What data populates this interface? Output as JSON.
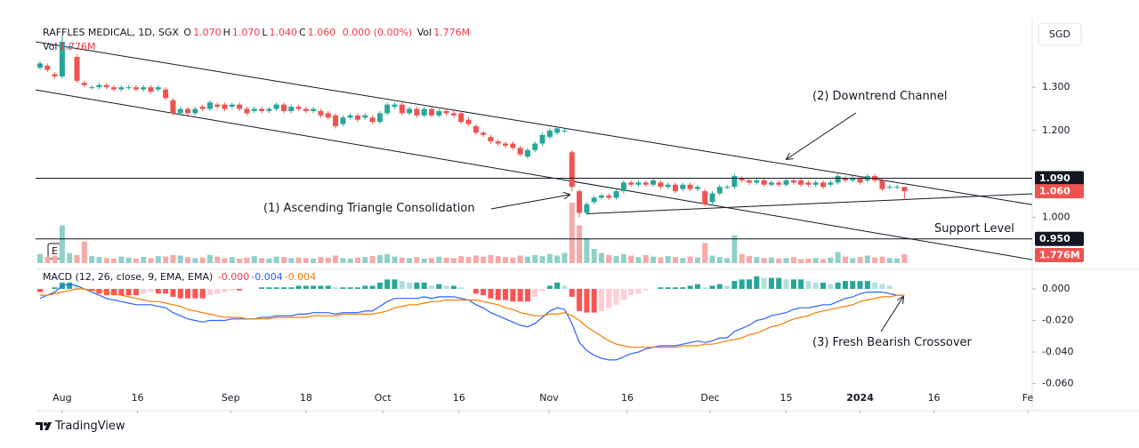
{
  "chart_data": [
    {
      "type": "candlestick",
      "symbol": "RAFFLES MEDICAL, 1D, SGX",
      "legend": [
        {
          "key": "O",
          "value": "1.070"
        },
        {
          "key": "H",
          "value": "1.070"
        },
        {
          "key": "L",
          "value": "1.040"
        },
        {
          "key": "C",
          "value": "1.060"
        }
      ],
      "change": "0.000 (0.00%)",
      "volume_legend": {
        "key": "Vol",
        "value": "1.776M"
      },
      "currency": "SGD",
      "open": [
        1.345,
        1.35,
        1.33,
        1.325,
        1.39,
        1.37,
        1.31,
        1.3,
        1.3,
        1.305,
        1.3,
        1.295,
        1.3,
        1.3,
        1.295,
        1.3,
        1.295,
        1.295,
        1.27,
        1.24,
        1.25,
        1.24,
        1.255,
        1.25,
        1.26,
        1.26,
        1.255,
        1.26,
        1.25,
        1.245,
        1.25,
        1.245,
        1.25,
        1.26,
        1.245,
        1.255,
        1.25,
        1.245,
        1.245,
        1.24,
        1.235,
        1.215,
        1.23,
        1.235,
        1.23,
        1.23,
        1.22,
        1.24,
        1.255,
        1.26,
        1.24,
        1.25,
        1.235,
        1.25,
        1.235,
        1.245,
        1.24,
        1.24,
        1.225,
        1.21,
        1.195,
        1.185,
        1.175,
        1.17,
        1.17,
        1.16,
        1.14,
        1.155,
        1.17,
        1.185,
        1.195,
        1.2,
        1.15,
        1.06,
        1.01,
        1.035,
        1.045,
        1.05,
        1.045,
        1.06,
        1.08,
        1.075,
        1.08,
        1.075,
        1.08,
        1.07,
        1.075,
        1.065,
        1.075,
        1.065,
        1.06,
        1.035,
        1.055,
        1.07,
        1.07,
        1.09,
        1.085,
        1.08,
        1.085,
        1.075,
        1.08,
        1.075,
        1.085,
        1.085,
        1.08,
        1.075,
        1.08,
        1.075,
        1.08,
        1.09,
        1.085,
        1.09,
        1.085,
        1.095,
        1.085,
        1.07,
        1.07,
        1.07
      ],
      "high": [
        1.36,
        1.355,
        1.335,
        1.42,
        1.4,
        1.375,
        1.315,
        1.305,
        1.31,
        1.31,
        1.305,
        1.305,
        1.305,
        1.305,
        1.305,
        1.305,
        1.305,
        1.3,
        1.275,
        1.255,
        1.255,
        1.255,
        1.26,
        1.27,
        1.265,
        1.265,
        1.265,
        1.265,
        1.255,
        1.255,
        1.255,
        1.255,
        1.265,
        1.265,
        1.26,
        1.26,
        1.255,
        1.255,
        1.25,
        1.245,
        1.24,
        1.235,
        1.24,
        1.24,
        1.24,
        1.235,
        1.245,
        1.265,
        1.265,
        1.265,
        1.255,
        1.255,
        1.255,
        1.255,
        1.25,
        1.25,
        1.245,
        1.245,
        1.23,
        1.215,
        1.2,
        1.19,
        1.18,
        1.175,
        1.175,
        1.165,
        1.16,
        1.175,
        1.195,
        1.205,
        1.21,
        1.205,
        1.155,
        1.065,
        1.035,
        1.05,
        1.055,
        1.055,
        1.065,
        1.085,
        1.085,
        1.085,
        1.085,
        1.09,
        1.085,
        1.08,
        1.08,
        1.08,
        1.08,
        1.075,
        1.065,
        1.06,
        1.075,
        1.075,
        1.1,
        1.095,
        1.09,
        1.09,
        1.09,
        1.085,
        1.085,
        1.09,
        1.09,
        1.09,
        1.085,
        1.085,
        1.085,
        1.085,
        1.1,
        1.095,
        1.095,
        1.095,
        1.1,
        1.1,
        1.09,
        1.075,
        1.075,
        1.07
      ],
      "low": [
        1.34,
        1.335,
        1.32,
        1.32,
        1.385,
        1.31,
        1.3,
        1.295,
        1.295,
        1.295,
        1.29,
        1.29,
        1.295,
        1.29,
        1.29,
        1.285,
        1.29,
        1.27,
        1.235,
        1.235,
        1.235,
        1.235,
        1.245,
        1.245,
        1.25,
        1.245,
        1.25,
        1.245,
        1.235,
        1.24,
        1.24,
        1.24,
        1.245,
        1.24,
        1.24,
        1.245,
        1.24,
        1.24,
        1.23,
        1.225,
        1.205,
        1.21,
        1.225,
        1.22,
        1.225,
        1.215,
        1.215,
        1.235,
        1.25,
        1.235,
        1.235,
        1.23,
        1.23,
        1.23,
        1.23,
        1.235,
        1.23,
        1.215,
        1.21,
        1.19,
        1.185,
        1.17,
        1.165,
        1.16,
        1.155,
        1.14,
        1.135,
        1.15,
        1.165,
        1.18,
        1.19,
        1.195,
        1.06,
        1.0,
        1.005,
        1.03,
        1.04,
        1.04,
        1.04,
        1.055,
        1.07,
        1.07,
        1.07,
        1.07,
        1.065,
        1.065,
        1.055,
        1.06,
        1.06,
        1.06,
        1.025,
        1.03,
        1.05,
        1.065,
        1.065,
        1.08,
        1.075,
        1.075,
        1.07,
        1.07,
        1.07,
        1.07,
        1.075,
        1.07,
        1.07,
        1.07,
        1.065,
        1.07,
        1.075,
        1.08,
        1.08,
        1.075,
        1.08,
        1.08,
        1.06,
        1.065,
        1.065,
        1.04
      ],
      "close": [
        1.355,
        1.34,
        1.325,
        1.405,
        1.395,
        1.315,
        1.305,
        1.3,
        1.305,
        1.3,
        1.295,
        1.3,
        1.3,
        1.295,
        1.3,
        1.29,
        1.3,
        1.275,
        1.24,
        1.25,
        1.24,
        1.25,
        1.25,
        1.265,
        1.255,
        1.25,
        1.26,
        1.25,
        1.24,
        1.25,
        1.245,
        1.25,
        1.26,
        1.245,
        1.255,
        1.25,
        1.245,
        1.25,
        1.235,
        1.23,
        1.21,
        1.23,
        1.235,
        1.225,
        1.235,
        1.22,
        1.24,
        1.26,
        1.26,
        1.24,
        1.25,
        1.235,
        1.25,
        1.235,
        1.245,
        1.24,
        1.235,
        1.22,
        1.215,
        1.195,
        1.19,
        1.175,
        1.17,
        1.165,
        1.16,
        1.145,
        1.155,
        1.17,
        1.19,
        1.2,
        1.205,
        1.2,
        1.07,
        1.01,
        1.03,
        1.045,
        1.05,
        1.045,
        1.06,
        1.08,
        1.075,
        1.08,
        1.075,
        1.085,
        1.07,
        1.075,
        1.06,
        1.075,
        1.065,
        1.07,
        1.03,
        1.055,
        1.07,
        1.07,
        1.095,
        1.085,
        1.08,
        1.085,
        1.075,
        1.08,
        1.075,
        1.085,
        1.08,
        1.075,
        1.075,
        1.08,
        1.07,
        1.08,
        1.095,
        1.085,
        1.09,
        1.08,
        1.095,
        1.085,
        1.065,
        1.07,
        1.07,
        1.06
      ],
      "volume": [
        1.8,
        1.2,
        1.5,
        7.5,
        2.0,
        1.6,
        4.3,
        1.4,
        1.2,
        1.0,
        0.9,
        1.3,
        1.1,
        0.9,
        1.2,
        1.0,
        1.4,
        1.3,
        1.6,
        1.5,
        1.2,
        1.0,
        1.1,
        1.6,
        1.3,
        1.0,
        1.2,
        0.9,
        1.1,
        1.4,
        1.0,
        0.9,
        1.3,
        1.2,
        1.0,
        1.1,
        1.0,
        0.9,
        1.2,
        1.1,
        1.5,
        1.0,
        0.9,
        1.1,
        1.2,
        1.4,
        1.6,
        1.8,
        1.3,
        1.1,
        1.0,
        1.2,
        0.9,
        1.0,
        1.3,
        1.1,
        1.0,
        1.4,
        1.2,
        1.5,
        1.3,
        1.6,
        1.4,
        1.2,
        1.1,
        1.5,
        1.3,
        1.6,
        1.4,
        1.8,
        1.5,
        2.0,
        12.0,
        7.5,
        5.0,
        2.8,
        2.0,
        1.6,
        1.4,
        1.8,
        1.5,
        1.2,
        1.6,
        1.3,
        1.1,
        1.4,
        1.2,
        1.0,
        1.3,
        1.1,
        4.0,
        1.5,
        1.2,
        1.0,
        5.5,
        1.8,
        1.4,
        1.2,
        1.0,
        1.1,
        0.9,
        1.0,
        1.2,
        0.8,
        0.9,
        1.0,
        0.8,
        1.1,
        2.2,
        1.3,
        1.0,
        1.2,
        1.5,
        1.1,
        1.3,
        1.0,
        0.9,
        1.776
      ],
      "last_close_label": "1.060",
      "last_volume_label": "1.776M",
      "colors": {
        "up": "#26a69a",
        "down": "#ef5350",
        "volume_up": "#8fd0c9",
        "volume_down": "#f7a9a7"
      },
      "xlim": [
        -0.6,
        134.3
      ],
      "ylim": [
        0.894,
        1.444
      ],
      "yticks": [
        {
          "value": 1.3,
          "label": "1.300"
        },
        {
          "value": 1.2,
          "label": "1.200"
        },
        {
          "value": 1.0,
          "label": "1.000"
        }
      ],
      "hlines": [
        {
          "value": 1.09,
          "label": "1.090"
        },
        {
          "value": 0.95,
          "label": "0.950"
        }
      ],
      "trendlines": [
        {
          "points": [
            [
              -0.6,
              1.405
            ],
            [
              134.3,
              1.029
            ]
          ]
        },
        {
          "points": [
            [
              -0.6,
              1.294
            ],
            [
              134.3,
              0.902
            ]
          ]
        },
        {
          "points": [
            [
              74,
              1.008
            ],
            [
              134.3,
              1.054
            ]
          ]
        }
      ],
      "annotations": [
        "(1) Ascending Triangle Consolidation",
        "(2) Downtrend Channel",
        "Support Level"
      ],
      "earnings_marker": "E"
    },
    {
      "type": "macd",
      "title": "MACD (12, 26, close, 9, EMA, EMA)",
      "series": [
        {
          "color": "#f23645",
          "legend": "-0.000",
          "values": [
            -0.002,
            0.0,
            0.001,
            0.004,
            0.004,
            0.002,
            0.0,
            -0.001,
            -0.003,
            -0.004,
            -0.004,
            -0.004,
            -0.004,
            -0.004,
            -0.003,
            -0.002,
            -0.003,
            -0.003,
            -0.005,
            -0.006,
            -0.006,
            -0.006,
            -0.006,
            -0.004,
            -0.003,
            -0.002,
            -0.001,
            -0.001,
            0.0,
            0.0,
            0.001,
            0.001,
            0.001,
            0.001,
            0.001,
            0.002,
            0.002,
            0.002,
            0.002,
            0.002,
            0.001,
            0.001,
            0.001,
            0.001,
            0.002,
            0.002,
            0.004,
            0.006,
            0.006,
            0.005,
            0.004,
            0.004,
            0.004,
            0.002,
            0.003,
            0.002,
            0.002,
            0.001,
            0.0,
            -0.003,
            -0.004,
            -0.006,
            -0.007,
            -0.007,
            -0.008,
            -0.008,
            -0.008,
            -0.005,
            -0.001,
            0.002,
            0.004,
            0.002,
            -0.005,
            -0.014,
            -0.015,
            -0.015,
            -0.014,
            -0.012,
            -0.01,
            -0.007,
            -0.004,
            -0.003,
            -0.001,
            0.0,
            0.001,
            0.001,
            0.001,
            0.001,
            0.002,
            0.003,
            0.001,
            0.002,
            0.003,
            0.002,
            0.005,
            0.006,
            0.006,
            0.008,
            0.007,
            0.007,
            0.007,
            0.006,
            0.006,
            0.006,
            0.005,
            0.004,
            0.004,
            0.003,
            0.004,
            0.005,
            0.005,
            0.005,
            0.005,
            0.004,
            0.003,
            0.002,
            0.0,
            0.0
          ]
        },
        {
          "color": "#2962ff",
          "legend": "-0.004",
          "values": [
            -0.006,
            -0.004,
            -0.002,
            0.002,
            0.003,
            0.002,
            0.0,
            -0.002,
            -0.004,
            -0.006,
            -0.007,
            -0.008,
            -0.009,
            -0.01,
            -0.01,
            -0.01,
            -0.011,
            -0.012,
            -0.015,
            -0.017,
            -0.019,
            -0.02,
            -0.021,
            -0.02,
            -0.02,
            -0.02,
            -0.019,
            -0.019,
            -0.019,
            -0.019,
            -0.018,
            -0.018,
            -0.017,
            -0.017,
            -0.017,
            -0.016,
            -0.016,
            -0.015,
            -0.015,
            -0.015,
            -0.016,
            -0.015,
            -0.015,
            -0.015,
            -0.014,
            -0.014,
            -0.011,
            -0.008,
            -0.006,
            -0.006,
            -0.006,
            -0.006,
            -0.005,
            -0.006,
            -0.005,
            -0.005,
            -0.005,
            -0.006,
            -0.007,
            -0.01,
            -0.012,
            -0.015,
            -0.017,
            -0.019,
            -0.021,
            -0.023,
            -0.024,
            -0.022,
            -0.018,
            -0.014,
            -0.012,
            -0.013,
            -0.022,
            -0.034,
            -0.039,
            -0.042,
            -0.044,
            -0.045,
            -0.045,
            -0.043,
            -0.041,
            -0.04,
            -0.038,
            -0.037,
            -0.036,
            -0.036,
            -0.036,
            -0.035,
            -0.034,
            -0.033,
            -0.034,
            -0.033,
            -0.031,
            -0.031,
            -0.027,
            -0.025,
            -0.023,
            -0.02,
            -0.019,
            -0.017,
            -0.016,
            -0.015,
            -0.013,
            -0.012,
            -0.012,
            -0.011,
            -0.01,
            -0.01,
            -0.008,
            -0.006,
            -0.005,
            -0.003,
            -0.002,
            -0.002,
            -0.002,
            -0.003,
            -0.004,
            -0.004
          ]
        },
        {
          "color": "#f57c00",
          "legend": "-0.004",
          "values": [
            -0.004,
            -0.004,
            -0.003,
            -0.002,
            -0.001,
            0.0,
            0.0,
            -0.001,
            -0.001,
            -0.002,
            -0.003,
            -0.004,
            -0.005,
            -0.006,
            -0.007,
            -0.008,
            -0.008,
            -0.009,
            -0.01,
            -0.011,
            -0.013,
            -0.014,
            -0.015,
            -0.016,
            -0.017,
            -0.018,
            -0.018,
            -0.018,
            -0.019,
            -0.019,
            -0.019,
            -0.019,
            -0.018,
            -0.018,
            -0.018,
            -0.018,
            -0.018,
            -0.017,
            -0.017,
            -0.017,
            -0.017,
            -0.016,
            -0.016,
            -0.016,
            -0.016,
            -0.016,
            -0.015,
            -0.014,
            -0.012,
            -0.011,
            -0.01,
            -0.01,
            -0.009,
            -0.008,
            -0.008,
            -0.007,
            -0.007,
            -0.007,
            -0.007,
            -0.007,
            -0.008,
            -0.009,
            -0.01,
            -0.012,
            -0.013,
            -0.015,
            -0.016,
            -0.017,
            -0.017,
            -0.016,
            -0.016,
            -0.015,
            -0.017,
            -0.02,
            -0.024,
            -0.027,
            -0.03,
            -0.033,
            -0.035,
            -0.036,
            -0.037,
            -0.037,
            -0.037,
            -0.037,
            -0.037,
            -0.037,
            -0.037,
            -0.036,
            -0.036,
            -0.036,
            -0.035,
            -0.035,
            -0.034,
            -0.033,
            -0.032,
            -0.031,
            -0.029,
            -0.028,
            -0.026,
            -0.024,
            -0.023,
            -0.021,
            -0.019,
            -0.018,
            -0.017,
            -0.015,
            -0.014,
            -0.013,
            -0.012,
            -0.011,
            -0.01,
            -0.008,
            -0.007,
            -0.006,
            -0.005,
            -0.005,
            -0.004,
            -0.004
          ]
        }
      ],
      "histogram_colors": {
        "grow_up": "#26a69a",
        "fall_up": "#b2dfdb",
        "fall_down": "#ff5252",
        "grow_down": "#ffcdd2"
      },
      "ylim": [
        -0.076,
        0.0124
      ],
      "yticks": [
        {
          "value": 0,
          "label": "0.000"
        },
        {
          "value": -0.02,
          "label": "-0.020"
        },
        {
          "value": -0.04,
          "label": "-0.040"
        },
        {
          "value": -0.06,
          "label": "-0.060"
        }
      ],
      "xlim": [
        -0.6,
        134.3
      ],
      "xticks": [
        {
          "value": 3,
          "label": "Aug"
        },
        {
          "value": 13.2,
          "label": "16"
        },
        {
          "value": 25.8,
          "label": "Sep"
        },
        {
          "value": 36,
          "label": "18"
        },
        {
          "value": 46.4,
          "label": "Oct"
        },
        {
          "value": 56.7,
          "label": "16"
        },
        {
          "value": 68.9,
          "label": "Nov"
        },
        {
          "value": 79.5,
          "label": "16"
        },
        {
          "value": 90.7,
          "label": "Dec"
        },
        {
          "value": 101,
          "label": "15"
        },
        {
          "value": 111,
          "label": "2024"
        },
        {
          "value": 121,
          "label": "16"
        },
        {
          "value": 133.7,
          "label": "Fe"
        }
      ],
      "annotation": "(3) Fresh Bearish Crossover"
    }
  ],
  "brand": "TradingView"
}
